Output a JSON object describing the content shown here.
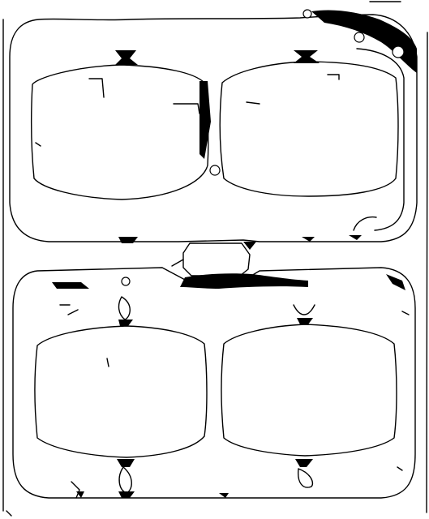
{
  "image": {
    "kind": "binary line-art mask",
    "colors": {
      "ink": "#000000",
      "background": "#ffffff"
    },
    "panels": [
      {
        "name": "upper-panel",
        "cells": 2
      },
      {
        "name": "lower-panel",
        "cells": 2
      }
    ]
  }
}
